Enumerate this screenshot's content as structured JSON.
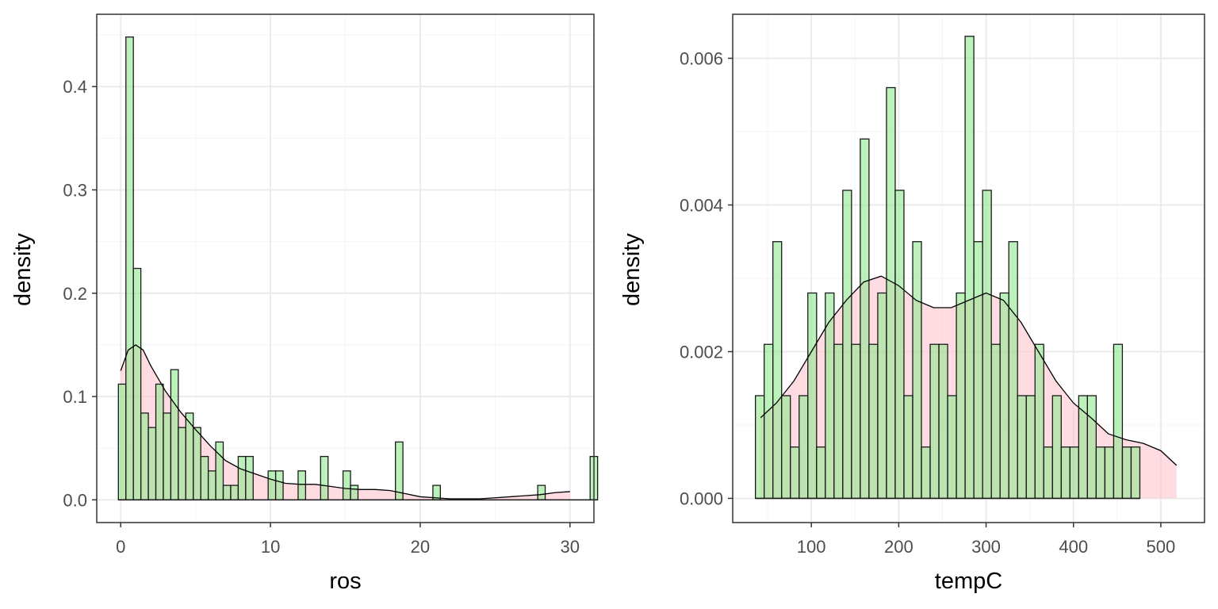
{
  "colors": {
    "bar_fill": "#90e890",
    "bar_stroke": "#1a1a1a",
    "density_fill": "#ffc0cb",
    "density_line": "#000000",
    "grid_major": "#ebebeb",
    "grid_minor": "#f4f4f4",
    "panel_border": "#333333",
    "tick_text": "#4d4d4d"
  },
  "chart_data": [
    {
      "type": "bar",
      "subtype": "histogram with density overlay",
      "xlabel": "ros",
      "ylabel": "density",
      "xlim": [
        -1.6,
        31.6
      ],
      "ylim": [
        -0.022,
        0.47
      ],
      "xticks": [
        0,
        10,
        20,
        30
      ],
      "xtick_labels": [
        "0",
        "10",
        "20",
        "30"
      ],
      "yticks": [
        0.0,
        0.1,
        0.2,
        0.3,
        0.4
      ],
      "ytick_labels": [
        "0.0",
        "0.1",
        "0.2",
        "0.3",
        "0.4"
      ],
      "grid": true,
      "bins": {
        "start": -0.154,
        "width": 0.5,
        "values": [
          0.112,
          0.448,
          0.224,
          0.084,
          0.07,
          0.112,
          0.084,
          0.126,
          0.07,
          0.084,
          0.07,
          0.042,
          0.028,
          0.056,
          0.014,
          0.014,
          0.042,
          0.042,
          0,
          0,
          0.028,
          0.028,
          0,
          0,
          0.028,
          0,
          0,
          0.042,
          0,
          0,
          0.028,
          0.014,
          0,
          0,
          0,
          0,
          0,
          0.056,
          0,
          0,
          0,
          0,
          0.014,
          0,
          0,
          0,
          0,
          0,
          0,
          0,
          0,
          0,
          0,
          0,
          0,
          0,
          0.014,
          0,
          0,
          0,
          0,
          0,
          0,
          0.042
        ]
      },
      "density_curve": {
        "x": [
          0,
          0.5,
          1.0,
          1.5,
          2.0,
          3.0,
          4.0,
          5.0,
          6.0,
          7.0,
          8.0,
          9.0,
          10.0,
          11.0,
          12.0,
          13.0,
          14.0,
          15.0,
          16.0,
          17.0,
          18.0,
          19.0,
          20.0,
          21.0,
          22.0,
          23.0,
          24.0,
          25.0,
          26.0,
          27.0,
          28.0,
          29.0,
          30.0
        ],
        "y": [
          0.125,
          0.145,
          0.15,
          0.145,
          0.13,
          0.105,
          0.085,
          0.068,
          0.052,
          0.038,
          0.03,
          0.025,
          0.02,
          0.016,
          0.015,
          0.015,
          0.013,
          0.011,
          0.01,
          0.01,
          0.009,
          0.006,
          0.003,
          0.002,
          0.001,
          0.001,
          0.001,
          0.002,
          0.003,
          0.004,
          0.005,
          0.007,
          0.008
        ]
      }
    },
    {
      "type": "bar",
      "subtype": "histogram with density overlay",
      "xlabel": "tempC",
      "ylabel": "density",
      "xlim": [
        10,
        550
      ],
      "ylim": [
        -0.00033,
        0.0066
      ],
      "xticks": [
        100,
        200,
        300,
        400,
        500
      ],
      "xtick_labels": [
        "100",
        "200",
        "300",
        "400",
        "500"
      ],
      "yticks": [
        0.0,
        0.002,
        0.004,
        0.006
      ],
      "ytick_labels": [
        "0.000",
        "0.002",
        "0.004",
        "0.006"
      ],
      "grid": true,
      "bins": {
        "start": 36,
        "width": 10,
        "values": [
          0.0014,
          0.0021,
          0.0035,
          0.0014,
          0.0007,
          0.0014,
          0.0028,
          0.0007,
          0.0028,
          0.0021,
          0.0042,
          0.0021,
          0.0049,
          0.0021,
          0.0028,
          0.0056,
          0.0042,
          0.0014,
          0.0035,
          0.0007,
          0.0021,
          0.0021,
          0.0014,
          0.0028,
          0.0063,
          0.0035,
          0.0042,
          0.0021,
          0.0028,
          0.0035,
          0.0014,
          0.0014,
          0.0021,
          0.0007,
          0.0014,
          0.0007,
          0.0007,
          0.0014,
          0.0014,
          0.0007,
          0.0007,
          0.0021,
          0.0007,
          0.0007
        ]
      },
      "density_curve": {
        "x": [
          42,
          60,
          80,
          100,
          120,
          140,
          160,
          180,
          200,
          220,
          240,
          260,
          280,
          300,
          320,
          340,
          360,
          380,
          400,
          420,
          440,
          460,
          480,
          500,
          518
        ],
        "y": [
          0.0011,
          0.0013,
          0.0016,
          0.002,
          0.0024,
          0.0027,
          0.00295,
          0.00303,
          0.0029,
          0.0027,
          0.0026,
          0.0026,
          0.0027,
          0.0028,
          0.0027,
          0.0024,
          0.002,
          0.0016,
          0.0013,
          0.0011,
          0.00088,
          0.0008,
          0.00075,
          0.00065,
          0.00045
        ]
      }
    }
  ]
}
